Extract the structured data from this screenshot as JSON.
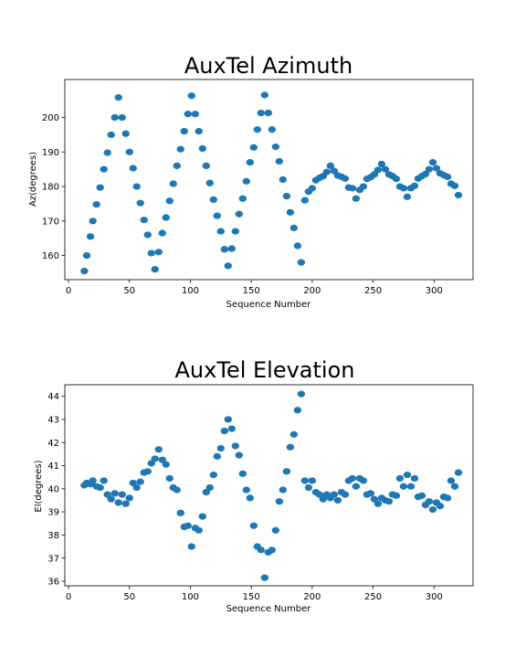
{
  "chart_data": [
    {
      "type": "scatter",
      "title": "AuxTel Azimuth",
      "xlabel": "Sequence Number",
      "ylabel": "Az(degrees)",
      "xlim": [
        -3,
        332
      ],
      "ylim": [
        153,
        211
      ],
      "xticks": [
        0,
        50,
        100,
        150,
        200,
        250,
        300
      ],
      "yticks": [
        160,
        170,
        180,
        190,
        200
      ],
      "color": "#1f77b4",
      "grid": false,
      "points": [
        [
          13,
          155.5
        ],
        [
          15,
          160
        ],
        [
          18,
          165.5
        ],
        [
          20,
          170
        ],
        [
          23,
          174.8
        ],
        [
          26,
          179.7
        ],
        [
          29,
          185
        ],
        [
          32,
          189.8
        ],
        [
          35,
          195
        ],
        [
          38,
          200
        ],
        [
          41,
          205.8
        ],
        [
          44,
          200
        ],
        [
          47,
          195.3
        ],
        [
          50,
          190
        ],
        [
          53,
          185.3
        ],
        [
          56,
          180
        ],
        [
          59,
          175.2
        ],
        [
          62,
          170.3
        ],
        [
          65,
          166
        ],
        [
          68,
          160.7
        ],
        [
          71,
          156
        ],
        [
          74,
          161
        ],
        [
          77,
          166.5
        ],
        [
          80,
          171
        ],
        [
          83,
          175.8
        ],
        [
          86,
          180.8
        ],
        [
          89,
          186
        ],
        [
          92,
          190.8
        ],
        [
          95,
          196
        ],
        [
          98,
          201
        ],
        [
          101,
          206.3
        ],
        [
          104,
          201
        ],
        [
          107,
          196
        ],
        [
          110,
          191
        ],
        [
          113,
          186
        ],
        [
          116,
          181
        ],
        [
          119,
          176.2
        ],
        [
          122,
          171.5
        ],
        [
          125,
          167
        ],
        [
          128,
          161.8
        ],
        [
          131,
          157
        ],
        [
          134,
          162
        ],
        [
          137,
          167
        ],
        [
          140,
          172
        ],
        [
          143,
          176.5
        ],
        [
          146,
          181.5
        ],
        [
          149,
          187
        ],
        [
          152,
          191.3
        ],
        [
          155,
          196.5
        ],
        [
          158,
          201.3
        ],
        [
          161,
          206.5
        ],
        [
          164,
          201.3
        ],
        [
          167,
          196.5
        ],
        [
          170,
          191.5
        ],
        [
          173,
          187.3
        ],
        [
          176,
          182
        ],
        [
          179,
          177.2
        ],
        [
          182,
          172.5
        ],
        [
          185,
          168
        ],
        [
          188,
          162.8
        ],
        [
          191,
          158
        ],
        [
          194,
          176
        ],
        [
          197,
          178.5
        ],
        [
          200,
          179.5
        ],
        [
          203,
          181.8
        ],
        [
          206,
          182.5
        ],
        [
          209,
          183
        ],
        [
          212,
          184.2
        ],
        [
          215,
          186
        ],
        [
          218,
          184.5
        ],
        [
          221,
          183.2
        ],
        [
          224,
          182.8
        ],
        [
          227,
          182.3
        ],
        [
          230,
          179.7
        ],
        [
          233,
          179.5
        ],
        [
          236,
          176.5
        ],
        [
          239,
          179
        ],
        [
          242,
          180
        ],
        [
          245,
          182.2
        ],
        [
          248,
          182.7
        ],
        [
          251,
          183.5
        ],
        [
          254,
          184.8
        ],
        [
          257,
          186.5
        ],
        [
          260,
          185
        ],
        [
          263,
          183.5
        ],
        [
          266,
          183
        ],
        [
          269,
          182.2
        ],
        [
          272,
          180
        ],
        [
          275,
          179.5
        ],
        [
          278,
          177
        ],
        [
          281,
          179.5
        ],
        [
          284,
          180.2
        ],
        [
          287,
          182.3
        ],
        [
          290,
          183
        ],
        [
          293,
          183.6
        ],
        [
          296,
          185
        ],
        [
          299,
          187
        ],
        [
          302,
          185.3
        ],
        [
          305,
          183.8
        ],
        [
          308,
          183.3
        ],
        [
          311,
          182.8
        ],
        [
          314,
          180.8
        ],
        [
          317,
          180.2
        ],
        [
          320,
          177.5
        ]
      ]
    },
    {
      "type": "scatter",
      "title": "AuxTel Elevation",
      "xlabel": "Sequence Number",
      "ylabel": "El(degrees)",
      "xlim": [
        -3,
        332
      ],
      "ylim": [
        35.8,
        44.5
      ],
      "xticks": [
        0,
        50,
        100,
        150,
        200,
        250,
        300
      ],
      "yticks": [
        36,
        37,
        38,
        39,
        40,
        41,
        42,
        43,
        44
      ],
      "color": "#1f77b4",
      "grid": false,
      "points": [
        [
          13,
          40.15
        ],
        [
          15,
          40.25
        ],
        [
          18,
          40.2
        ],
        [
          20,
          40.35
        ],
        [
          23,
          40.1
        ],
        [
          26,
          40.05
        ],
        [
          29,
          40.35
        ],
        [
          32,
          39.75
        ],
        [
          35,
          39.55
        ],
        [
          38,
          39.8
        ],
        [
          41,
          39.4
        ],
        [
          44,
          39.75
        ],
        [
          47,
          39.35
        ],
        [
          50,
          39.6
        ],
        [
          53,
          40.25
        ],
        [
          56,
          40.05
        ],
        [
          59,
          40.3
        ],
        [
          62,
          40.7
        ],
        [
          65,
          40.75
        ],
        [
          68,
          41.1
        ],
        [
          71,
          41.3
        ],
        [
          74,
          41.7
        ],
        [
          77,
          41.25
        ],
        [
          80,
          41.05
        ],
        [
          83,
          40.45
        ],
        [
          86,
          40.05
        ],
        [
          89,
          39.95
        ],
        [
          92,
          38.95
        ],
        [
          95,
          38.35
        ],
        [
          98,
          38.4
        ],
        [
          101,
          37.5
        ],
        [
          104,
          38.3
        ],
        [
          107,
          38.2
        ],
        [
          110,
          38.8
        ],
        [
          113,
          39.85
        ],
        [
          116,
          40.05
        ],
        [
          119,
          40.6
        ],
        [
          122,
          41.4
        ],
        [
          125,
          41.75
        ],
        [
          128,
          42.5
        ],
        [
          131,
          43
        ],
        [
          134,
          42.6
        ],
        [
          137,
          41.85
        ],
        [
          140,
          41.45
        ],
        [
          143,
          40.65
        ],
        [
          146,
          39.95
        ],
        [
          149,
          39.6
        ],
        [
          152,
          38.4
        ],
        [
          155,
          37.5
        ],
        [
          158,
          37.35
        ],
        [
          161,
          36.15
        ],
        [
          164,
          37.25
        ],
        [
          167,
          37.35
        ],
        [
          170,
          38.2
        ],
        [
          173,
          39.45
        ],
        [
          176,
          39.95
        ],
        [
          179,
          40.75
        ],
        [
          182,
          41.8
        ],
        [
          185,
          42.35
        ],
        [
          188,
          43.4
        ],
        [
          191,
          44.1
        ],
        [
          194,
          40.35
        ],
        [
          197,
          40.05
        ],
        [
          200,
          40.35
        ],
        [
          203,
          39.85
        ],
        [
          206,
          39.75
        ],
        [
          209,
          39.55
        ],
        [
          212,
          39.75
        ],
        [
          215,
          39.6
        ],
        [
          218,
          39.75
        ],
        [
          221,
          39.5
        ],
        [
          224,
          39.85
        ],
        [
          227,
          39.75
        ],
        [
          230,
          40.35
        ],
        [
          233,
          40.45
        ],
        [
          236,
          40.1
        ],
        [
          239,
          40.45
        ],
        [
          242,
          40.35
        ],
        [
          245,
          39.75
        ],
        [
          248,
          39.8
        ],
        [
          251,
          39.55
        ],
        [
          254,
          39.35
        ],
        [
          257,
          39.6
        ],
        [
          260,
          39.5
        ],
        [
          263,
          39.45
        ],
        [
          266,
          39.75
        ],
        [
          269,
          39.7
        ],
        [
          272,
          40.45
        ],
        [
          275,
          40.1
        ],
        [
          278,
          40.6
        ],
        [
          281,
          40.1
        ],
        [
          284,
          40.45
        ],
        [
          287,
          39.65
        ],
        [
          290,
          39.7
        ],
        [
          293,
          39.3
        ],
        [
          296,
          39.45
        ],
        [
          299,
          39.1
        ],
        [
          302,
          39.4
        ],
        [
          305,
          39.25
        ],
        [
          308,
          39.65
        ],
        [
          311,
          39.6
        ],
        [
          314,
          40.35
        ],
        [
          317,
          40.1
        ],
        [
          320,
          40.7
        ]
      ]
    }
  ]
}
